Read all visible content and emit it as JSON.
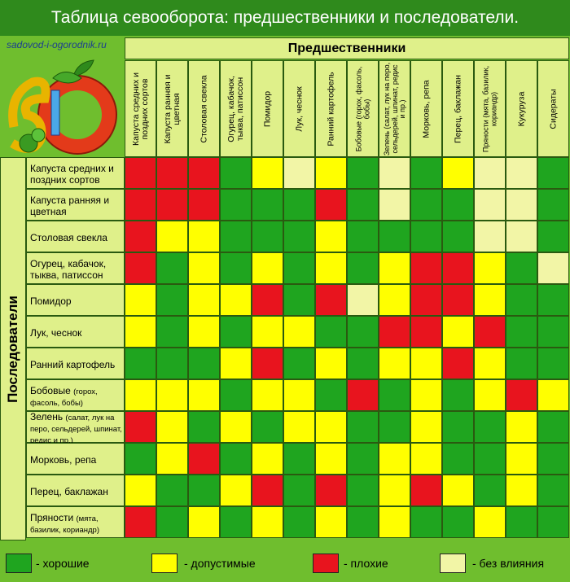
{
  "title": "Таблица севооборота: предшественники и последователи.",
  "site": "sadovod-i-ogorodnik.ru",
  "logo_text": "SIO",
  "colors": {
    "good": "#1fa51f",
    "ok": "#ffff00",
    "bad": "#e8141e",
    "neutral": "#f2f5a6"
  },
  "chart_data": {
    "type": "heatmap",
    "title": "Таблица севооборота: предшественники и последователи.",
    "x_axis_label": "Предшественники",
    "y_axis_label": "Последователи",
    "columns": [
      {
        "text": "Капуста средних и поздних сортов"
      },
      {
        "text": "Капуста ранняя и цветная"
      },
      {
        "text": "Столовая свекла"
      },
      {
        "text": "Огурец, кабачок, тыква, патиссон"
      },
      {
        "text": "Помидор"
      },
      {
        "text": "Лук, чеснок"
      },
      {
        "text": "Ранний картофель"
      },
      {
        "text": "Бобовые (горох, фасоль, бобы)",
        "small": true
      },
      {
        "text": "Зелень (салат, лук на перо, сельдерей, шпинат, редис и пр.)",
        "small": true
      },
      {
        "text": "Морковь, репа"
      },
      {
        "text": "Перец, баклажан"
      },
      {
        "text": "Пряности (мята, базилик, кориандр)",
        "small": true
      },
      {
        "text": "Кукуруза"
      },
      {
        "text": "Сидераты"
      }
    ],
    "rows": [
      {
        "main": "Капуста средних и поздних сортов",
        "sub": ""
      },
      {
        "main": "Капуста ранняя и цветная",
        "sub": ""
      },
      {
        "main": "Столовая свекла",
        "sub": ""
      },
      {
        "main": "Огурец, кабачок, тыква, патиссон",
        "sub": ""
      },
      {
        "main": "Помидор",
        "sub": ""
      },
      {
        "main": "Лук, чеснок",
        "sub": ""
      },
      {
        "main": "Ранний картофель",
        "sub": ""
      },
      {
        "main": "Бобовые",
        "sub": "(горох, фасоль, бобы)"
      },
      {
        "main": "Зелень",
        "sub": "(салат, лук на перо, сельдерей, шпинат, редис и пр.)"
      },
      {
        "main": "Морковь, репа",
        "sub": ""
      },
      {
        "main": "Перец, баклажан",
        "sub": ""
      },
      {
        "main": "Пряности",
        "sub": "(мята, базилик, кориандр)"
      }
    ],
    "values": [
      [
        "bad",
        "bad",
        "bad",
        "good",
        "ok",
        "neutral",
        "ok",
        "good",
        "neutral",
        "good",
        "ok",
        "neutral",
        "neutral",
        "good"
      ],
      [
        "bad",
        "bad",
        "bad",
        "good",
        "good",
        "good",
        "bad",
        "good",
        "neutral",
        "good",
        "good",
        "neutral",
        "neutral",
        "good"
      ],
      [
        "bad",
        "ok",
        "ok",
        "good",
        "good",
        "good",
        "ok",
        "good",
        "good",
        "good",
        "good",
        "neutral",
        "neutral",
        "good"
      ],
      [
        "bad",
        "good",
        "ok",
        "good",
        "ok",
        "good",
        "ok",
        "good",
        "ok",
        "bad",
        "bad",
        "ok",
        "good",
        "neutral"
      ],
      [
        "ok",
        "good",
        "ok",
        "ok",
        "bad",
        "good",
        "bad",
        "neutral",
        "ok",
        "bad",
        "bad",
        "ok",
        "good",
        "good"
      ],
      [
        "ok",
        "good",
        "ok",
        "good",
        "ok",
        "ok",
        "good",
        "good",
        "bad",
        "bad",
        "ok",
        "bad",
        "good",
        "good"
      ],
      [
        "good",
        "good",
        "good",
        "ok",
        "bad",
        "good",
        "ok",
        "good",
        "ok",
        "ok",
        "bad",
        "ok",
        "good",
        "good"
      ],
      [
        "ok",
        "ok",
        "ok",
        "good",
        "ok",
        "ok",
        "good",
        "bad",
        "good",
        "ok",
        "good",
        "ok",
        "bad",
        "ok"
      ],
      [
        "bad",
        "ok",
        "good",
        "ok",
        "good",
        "ok",
        "ok",
        "good",
        "good",
        "ok",
        "good",
        "good",
        "ok",
        "good"
      ],
      [
        "good",
        "ok",
        "bad",
        "good",
        "ok",
        "good",
        "ok",
        "good",
        "ok",
        "ok",
        "good",
        "good",
        "ok",
        "good"
      ],
      [
        "ok",
        "good",
        "good",
        "ok",
        "bad",
        "good",
        "bad",
        "good",
        "ok",
        "bad",
        "ok",
        "good",
        "ok",
        "good"
      ],
      [
        "bad",
        "good",
        "ok",
        "good",
        "ok",
        "good",
        "ok",
        "good",
        "ok",
        "good",
        "good",
        "ok",
        "good",
        "good"
      ]
    ]
  },
  "legend": [
    {
      "key": "good",
      "label": "- хорошие"
    },
    {
      "key": "ok",
      "label": "- допустимые"
    },
    {
      "key": "bad",
      "label": "- плохие"
    },
    {
      "key": "neutral",
      "label": "- без влияния"
    }
  ]
}
